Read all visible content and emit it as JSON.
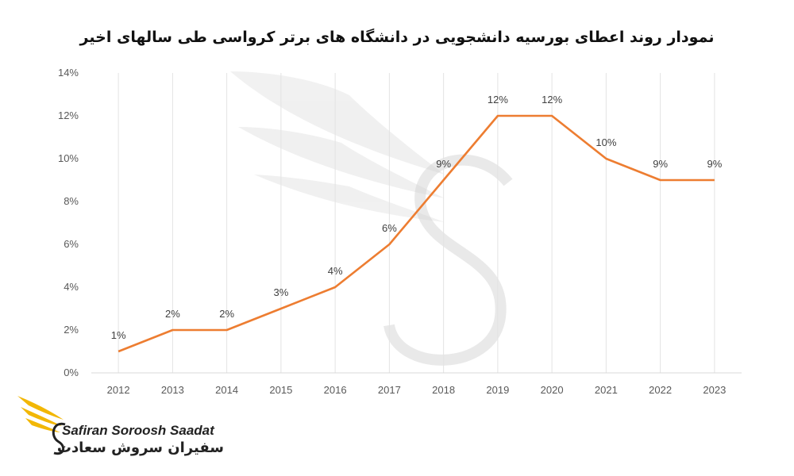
{
  "chart_data": {
    "type": "line",
    "title": "نمودار روند اعطای بورسیه دانشجویی در دانشگاه های برتر کرواسی طی سالهای اخیر",
    "categories": [
      "2012",
      "2013",
      "2014",
      "2015",
      "2016",
      "2017",
      "2018",
      "2019",
      "2020",
      "2021",
      "2022",
      "2023"
    ],
    "values": [
      1,
      2,
      2,
      3,
      4,
      6,
      9,
      12,
      12,
      10,
      9,
      9
    ],
    "data_labels": [
      "1%",
      "2%",
      "2%",
      "3%",
      "4%",
      "6%",
      "9%",
      "12%",
      "12%",
      "10%",
      "9%",
      "9%"
    ],
    "y_ticks": [
      "0%",
      "2%",
      "4%",
      "6%",
      "8%",
      "10%",
      "12%",
      "14%"
    ],
    "ylim": [
      0,
      14
    ],
    "grid": "vertical",
    "line_color": "#ED7D31",
    "xlabel": "",
    "ylabel": ""
  },
  "branding": {
    "name_en": "Safiran Soroosh Saadat",
    "name_fa": "سفیران سروش سعادت",
    "accent": "#F2B705"
  }
}
